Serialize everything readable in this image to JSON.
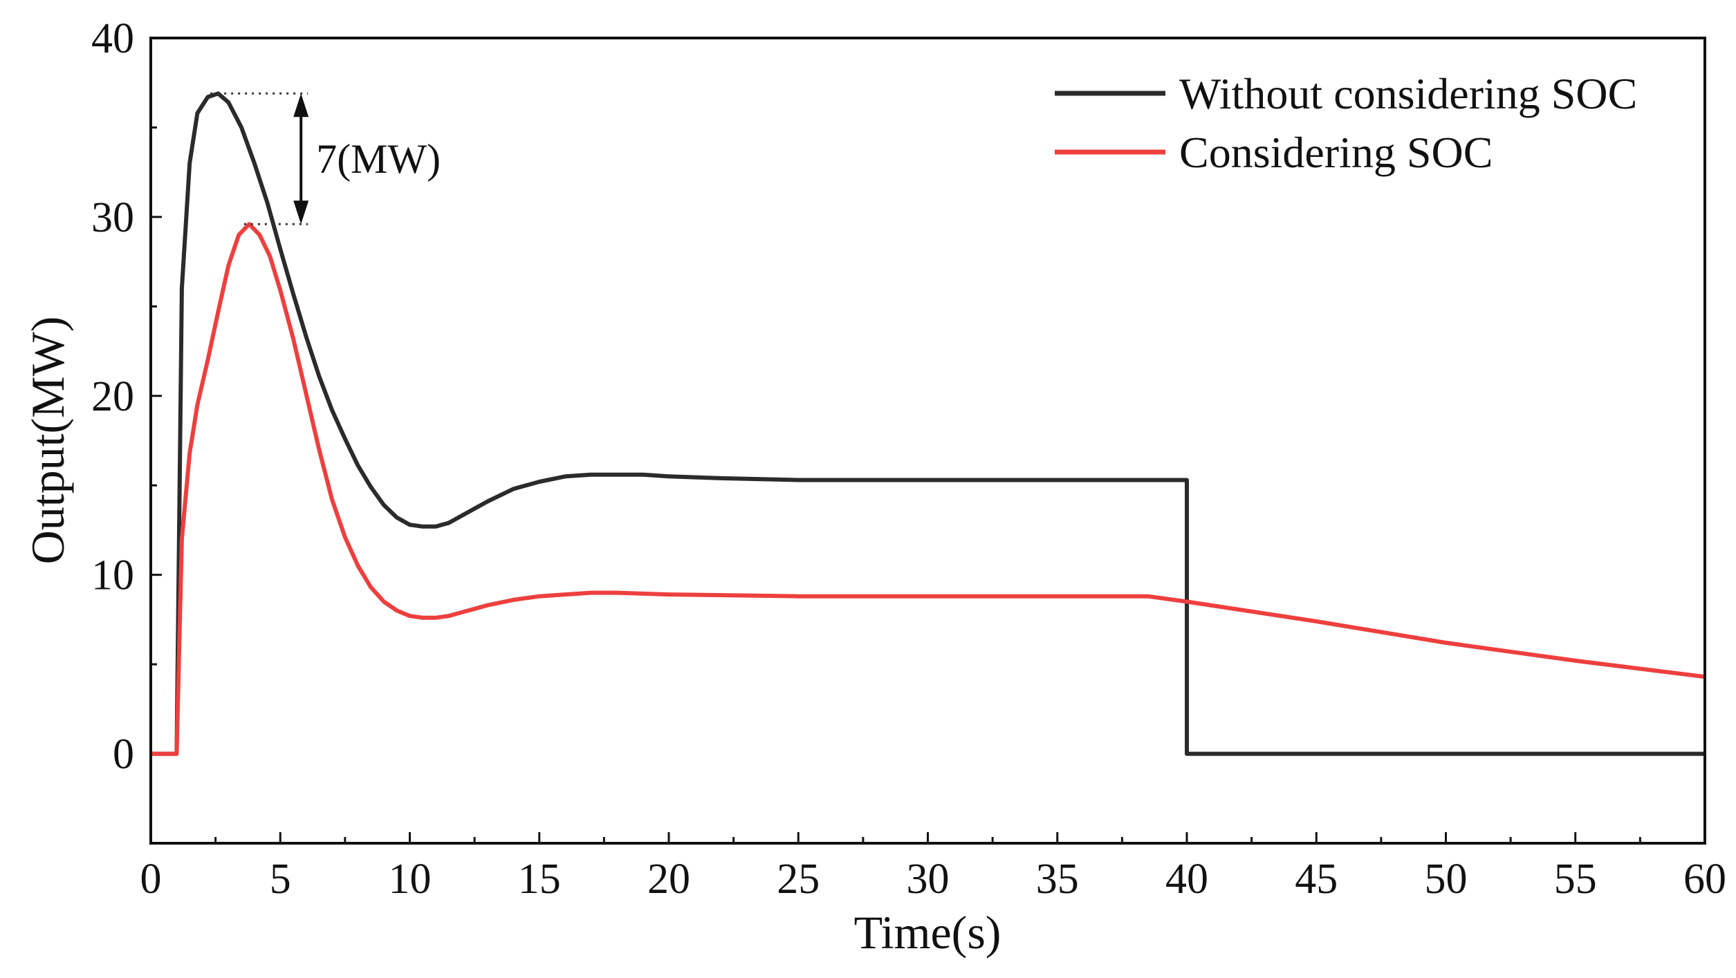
{
  "chart_data": {
    "type": "line",
    "title": "",
    "xlabel": "Time(s)",
    "ylabel": "Output(MW)",
    "xlim": [
      0,
      60
    ],
    "ylim": [
      -5,
      40
    ],
    "xticks": [
      0,
      5,
      10,
      15,
      20,
      25,
      30,
      35,
      40,
      45,
      50,
      55,
      60
    ],
    "yticks": [
      0,
      10,
      20,
      30,
      40
    ],
    "grid": false,
    "legend_position": "top-right",
    "series": [
      {
        "name": "Without considering SOC",
        "color": "#2b2b2b",
        "x": [
          0,
          1.0,
          1.0,
          1.2,
          1.5,
          1.8,
          2.2,
          2.6,
          3.0,
          3.5,
          4.0,
          4.5,
          5.0,
          5.5,
          6.0,
          6.5,
          7.0,
          7.5,
          8.0,
          8.5,
          9.0,
          9.5,
          10.0,
          10.5,
          11.0,
          11.5,
          12.0,
          13.0,
          14.0,
          15.0,
          16.0,
          17.0,
          18.0,
          19.0,
          20.0,
          22.0,
          25.0,
          30.0,
          35.0,
          40.0,
          40.0,
          45.0,
          50.0,
          55.0,
          60.0
        ],
        "y": [
          0,
          0,
          0,
          26.0,
          33.0,
          35.8,
          36.7,
          36.9,
          36.4,
          35.0,
          33.0,
          30.8,
          28.2,
          25.7,
          23.3,
          21.1,
          19.2,
          17.6,
          16.1,
          14.9,
          13.9,
          13.2,
          12.8,
          12.7,
          12.7,
          12.9,
          13.3,
          14.1,
          14.8,
          15.2,
          15.5,
          15.6,
          15.6,
          15.6,
          15.5,
          15.4,
          15.3,
          15.3,
          15.3,
          15.3,
          0,
          0,
          0,
          0,
          0
        ]
      },
      {
        "name": "Considering SOC",
        "color": "#ee3f3f",
        "x": [
          0,
          1.0,
          1.0,
          1.2,
          1.5,
          1.8,
          2.2,
          2.6,
          3.0,
          3.4,
          3.8,
          4.2,
          4.6,
          5.0,
          5.5,
          6.0,
          6.5,
          7.0,
          7.5,
          8.0,
          8.5,
          9.0,
          9.5,
          10.0,
          10.5,
          11.0,
          11.5,
          12.0,
          13.0,
          14.0,
          15.0,
          16.0,
          17.0,
          18.0,
          20.0,
          25.0,
          30.0,
          35.0,
          38.5,
          40.0,
          45.0,
          50.0,
          55.0,
          60.0
        ],
        "y": [
          0,
          0,
          0,
          12.0,
          16.8,
          19.5,
          22.0,
          24.7,
          27.3,
          29.0,
          29.6,
          29.0,
          27.8,
          25.9,
          23.2,
          20.1,
          17.0,
          14.2,
          12.1,
          10.5,
          9.3,
          8.5,
          8.0,
          7.7,
          7.6,
          7.6,
          7.7,
          7.9,
          8.3,
          8.6,
          8.8,
          8.9,
          9.0,
          9.0,
          8.9,
          8.8,
          8.8,
          8.8,
          8.8,
          8.5,
          7.4,
          6.2,
          5.2,
          4.3
        ]
      }
    ],
    "annotations": [
      {
        "text": "7(MW)",
        "from_y": 36.9,
        "to_y": 29.6,
        "x": 5.8
      }
    ]
  }
}
